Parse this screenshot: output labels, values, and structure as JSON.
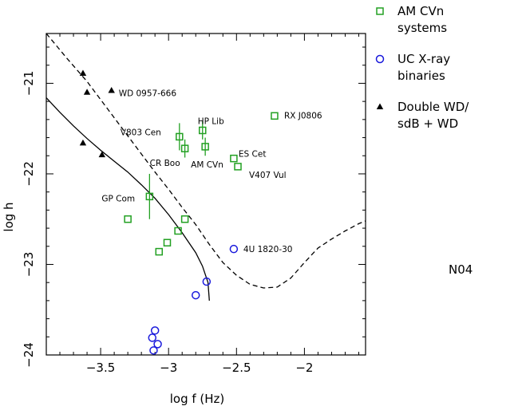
{
  "chart_data": {
    "type": "scatter",
    "title": "",
    "xlabel": "log f (Hz)",
    "ylabel": "log h",
    "xlim": [
      -3.9,
      -1.55
    ],
    "ylim": [
      -24.0,
      -20.45
    ],
    "x_ticks": [
      {
        "value": -3.5,
        "label": "−3.5"
      },
      {
        "value": -3.0,
        "label": "−3"
      },
      {
        "value": -2.5,
        "label": "−2.5"
      },
      {
        "value": -2.0,
        "label": "−2"
      }
    ],
    "y_ticks": [
      {
        "value": -21,
        "label": "−21"
      },
      {
        "value": -22,
        "label": "−22"
      },
      {
        "value": -23,
        "label": "−23"
      },
      {
        "value": -24,
        "label": "−24"
      }
    ],
    "colors": {
      "amcvn": "#22a022",
      "ucxray": "#1a1adc",
      "doublewd": "#000000",
      "curves": "#000000"
    },
    "series": [
      {
        "name": "AM CVn systems",
        "marker": "square",
        "points": [
          {
            "x": -2.92,
            "y": -21.59,
            "yerr": 0.15,
            "label": "V803 Cen"
          },
          {
            "x": -2.75,
            "y": -21.52,
            "yerr": 0.1,
            "label": "HP Lib"
          },
          {
            "x": -2.22,
            "y": -21.36,
            "label": "RX J0806"
          },
          {
            "x": -2.88,
            "y": -21.72,
            "yerr": 0.1,
            "label": "CR Boo"
          },
          {
            "x": -2.73,
            "y": -21.7,
            "yerr": 0.1,
            "label": "AM CVn"
          },
          {
            "x": -2.52,
            "y": -21.83,
            "label": "ES Cet"
          },
          {
            "x": -2.49,
            "y": -21.92,
            "label": "V407 Vul"
          },
          {
            "x": -3.14,
            "y": -22.25,
            "yerr": 0.25,
            "label": "GP Com"
          },
          {
            "x": -3.3,
            "y": -22.5
          },
          {
            "x": -2.88,
            "y": -22.5
          },
          {
            "x": -2.93,
            "y": -22.63
          },
          {
            "x": -3.01,
            "y": -22.76
          },
          {
            "x": -3.07,
            "y": -22.86
          }
        ]
      },
      {
        "name": "UC X-ray binaries",
        "marker": "circle",
        "points": [
          {
            "x": -2.52,
            "y": -22.83,
            "label": "4U 1820-30"
          },
          {
            "x": -2.72,
            "y": -23.19
          },
          {
            "x": -2.8,
            "y": -23.34
          },
          {
            "x": -3.1,
            "y": -23.73
          },
          {
            "x": -3.12,
            "y": -23.81
          },
          {
            "x": -3.08,
            "y": -23.88
          },
          {
            "x": -3.11,
            "y": -23.95
          }
        ]
      },
      {
        "name": "Double WD/ sdB + WD",
        "marker": "triangle",
        "points": [
          {
            "x": -3.63,
            "y": -20.89
          },
          {
            "x": -3.6,
            "y": -21.1
          },
          {
            "x": -3.42,
            "y": -21.08,
            "label": "WD 0957-666"
          },
          {
            "x": -3.63,
            "y": -21.66
          },
          {
            "x": -3.49,
            "y": -21.79
          }
        ]
      }
    ],
    "curves": [
      {
        "name": "solid sensitivity curve",
        "style": "solid",
        "points": [
          [
            -3.9,
            -21.16
          ],
          [
            -3.8,
            -21.32
          ],
          [
            -3.7,
            -21.47
          ],
          [
            -3.6,
            -21.61
          ],
          [
            -3.5,
            -21.74
          ],
          [
            -3.4,
            -21.86
          ],
          [
            -3.3,
            -21.98
          ],
          [
            -3.2,
            -22.12
          ],
          [
            -3.1,
            -22.27
          ],
          [
            -3.0,
            -22.45
          ],
          [
            -2.9,
            -22.65
          ],
          [
            -2.8,
            -22.87
          ],
          [
            -2.75,
            -23.02
          ],
          [
            -2.71,
            -23.2
          ],
          [
            -2.7,
            -23.4
          ]
        ]
      },
      {
        "name": "dashed sensitivity curve",
        "style": "dashed",
        "points": [
          [
            -3.9,
            -20.45
          ],
          [
            -3.75,
            -20.72
          ],
          [
            -3.6,
            -20.98
          ],
          [
            -3.5,
            -21.18
          ],
          [
            -3.4,
            -21.38
          ],
          [
            -3.3,
            -21.58
          ],
          [
            -3.2,
            -21.78
          ],
          [
            -3.1,
            -21.98
          ],
          [
            -3.0,
            -22.17
          ],
          [
            -2.9,
            -22.37
          ],
          [
            -2.8,
            -22.56
          ],
          [
            -2.7,
            -22.78
          ],
          [
            -2.6,
            -22.98
          ],
          [
            -2.5,
            -23.12
          ],
          [
            -2.4,
            -23.22
          ],
          [
            -2.3,
            -23.26
          ],
          [
            -2.2,
            -23.25
          ],
          [
            -2.1,
            -23.15
          ],
          [
            -2.0,
            -22.98
          ],
          [
            -1.9,
            -22.82
          ],
          [
            -1.8,
            -22.72
          ],
          [
            -1.7,
            -22.63
          ],
          [
            -1.6,
            -22.55
          ],
          [
            -1.55,
            -22.52
          ]
        ]
      }
    ],
    "side_note": "N04"
  },
  "legend": [
    {
      "marker": "square",
      "color": "#22a022",
      "lines": [
        "AM CVn",
        "systems"
      ]
    },
    {
      "marker": "circle",
      "color": "#1a1adc",
      "lines": [
        "UC X‐ray",
        "binaries"
      ]
    },
    {
      "marker": "triangle",
      "color": "#000000",
      "lines": [
        "Double WD/",
        "sdB + WD"
      ]
    }
  ]
}
